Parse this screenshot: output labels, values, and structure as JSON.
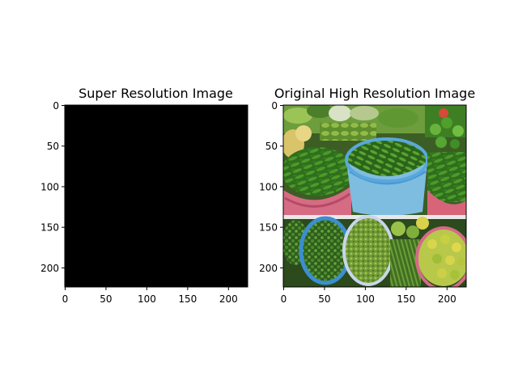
{
  "figure": {
    "background": "#ffffff"
  },
  "panels": [
    {
      "title": "Super Resolution Image",
      "content": "solid black image",
      "fill_color": "#000000",
      "x_ticks": [
        "0",
        "50",
        "100",
        "150",
        "200"
      ],
      "y_ticks": [
        "0",
        "50",
        "100",
        "150",
        "200"
      ],
      "xlim": [
        0,
        224
      ],
      "ylim": [
        224,
        0
      ]
    },
    {
      "title": "Original High Resolution Image",
      "content": "photo of a vegetable market: baskets of green chillies, bags of leafy greens, limes and bitter gourds",
      "x_ticks": [
        "0",
        "50",
        "100",
        "150",
        "200"
      ],
      "y_ticks": [
        "0",
        "50",
        "100",
        "150",
        "200"
      ],
      "xlim": [
        0,
        224
      ],
      "ylim": [
        224,
        0
      ]
    }
  ]
}
